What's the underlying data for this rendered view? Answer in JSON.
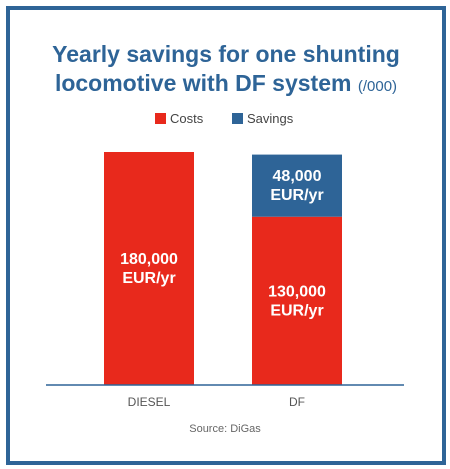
{
  "chart_data": {
    "type": "bar",
    "stacked": true,
    "title_line1": "Yearly savings for one shunting",
    "title_line2": "locomotive with DF system",
    "title_unit": "(/000)",
    "categories": [
      "DIESEL",
      "DF"
    ],
    "series": [
      {
        "name": "Costs",
        "color": "#e8291c",
        "values": [
          180000,
          130000
        ],
        "labels": [
          [
            "180,000",
            "EUR/yr"
          ],
          [
            "130,000",
            "EUR/yr"
          ]
        ]
      },
      {
        "name": "Savings",
        "color": "#2e6497",
        "values": [
          0,
          48000
        ],
        "labels": [
          [],
          [
            "48,000",
            "EUR/yr"
          ]
        ]
      }
    ],
    "ylim": [
      0,
      180000
    ],
    "grid": false,
    "legend_position": "top-center",
    "source": "Source: DiGas"
  }
}
